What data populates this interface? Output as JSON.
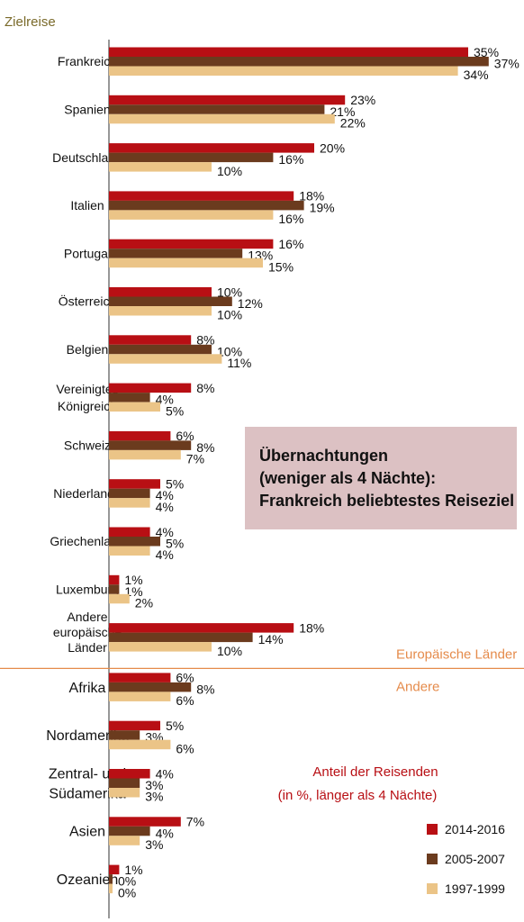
{
  "chart_data": {
    "type": "bar",
    "orientation": "horizontal",
    "y_axis_title": "Zielreise",
    "categories": [
      "Frankreich",
      "Spanien",
      "Deutschland",
      "Italien",
      "Portugal",
      "Österreich",
      "Belgien",
      "Vereinigtes Königreich",
      "Schweiz",
      "Niederlande",
      "Griechenland",
      "Luxemburg",
      "Andere europäische Länder",
      "Afrika",
      "Nordamerika",
      "Zentral- und Südamerika",
      "Asien",
      "Ozeanien"
    ],
    "series": [
      {
        "name": "2014-2016",
        "color": "#b80f14",
        "values": [
          35,
          23,
          20,
          18,
          16,
          10,
          8,
          8,
          6,
          5,
          4,
          1,
          18,
          6,
          5,
          4,
          7,
          1
        ]
      },
      {
        "name": "2005-2007",
        "color": "#6b3b1e",
        "values": [
          37,
          21,
          16,
          19,
          13,
          12,
          10,
          4,
          8,
          4,
          5,
          1,
          14,
          8,
          3,
          3,
          4,
          0
        ]
      },
      {
        "name": "1997-1999",
        "color": "#ebc487",
        "values": [
          34,
          22,
          10,
          16,
          15,
          10,
          11,
          5,
          7,
          4,
          4,
          2,
          10,
          6,
          6,
          3,
          3,
          0
        ]
      }
    ],
    "value_suffix": "%",
    "group_labels": {
      "europe": "Europäische Länder",
      "other": "Andere"
    },
    "legend_title": [
      "Anteil der Reisenden",
      "(in %, länger als 4 Nächte)"
    ],
    "legend_position": "bottom-right",
    "grid": false
  },
  "callout": {
    "line1": "Übernachtungen",
    "line2": "(weniger als 4 Nächte):",
    "line3": "Frankreich beliebtestes Reiseziel"
  },
  "colors": {
    "accent_orange": "#e58b4b",
    "axis": "#6b6b6b",
    "callout_bg": "#dcc1c3",
    "legend_title": "#b80f14"
  }
}
